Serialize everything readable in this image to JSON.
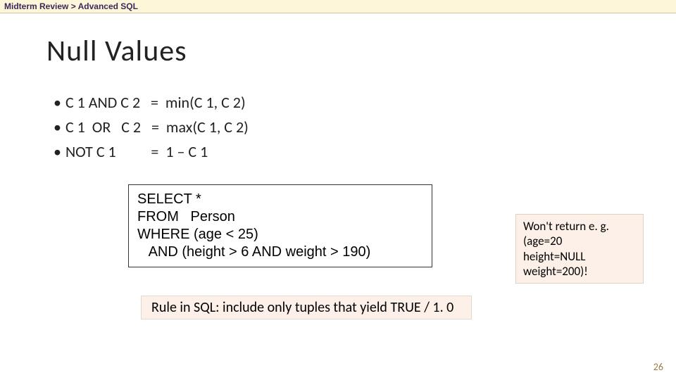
{
  "breadcrumb": {
    "segment1": "Midterm Review",
    "sep": "  >  ",
    "segment2": "Advanced SQL"
  },
  "title": "Null Values",
  "bullets": [
    {
      "text": "C 1 AND C 2   =  min(C 1, C 2)"
    },
    {
      "text": "C 1  OR   C 2   =  max(C 1, C 2)"
    },
    {
      "text": "NOT C 1          =  1 – C 1"
    }
  ],
  "code": "SELECT *\nFROM   Person\nWHERE (age < 25)\n   AND (height > 6 AND weight > 190)",
  "annotation": "Won't return e. g.\n(age=20\nheight=NULL\nweight=200)!",
  "rule": "Rule in SQL: include only tuples that yield TRUE / 1. 0",
  "page_number": "26",
  "colors": {
    "breadcrumb_bg": "#fdf6d9",
    "breadcrumb_border": "#d0c890",
    "breadcrumb_text": "#3a2a5a",
    "title_text": "#222222",
    "body_text": "#222222",
    "codebox_border": "#333333",
    "annotation_bg": "#fdf0e8",
    "annotation_border": "#e0d0c0",
    "rulebox_bg": "#fdf0e8",
    "rulebox_border": "#e6d9cc",
    "pagenum_text": "#9d7a4a",
    "background": "#ffffff"
  },
  "fonts": {
    "breadcrumb": {
      "family": "Comic Sans MS",
      "size_pt": 9,
      "weight": "bold"
    },
    "title": {
      "family": "Calibri Light",
      "size_pt": 32,
      "weight": "normal"
    },
    "body": {
      "family": "Calibri",
      "size_pt": 17,
      "weight": "normal"
    },
    "code": {
      "family": "Arial",
      "size_pt": 15,
      "weight": "normal"
    },
    "annotation": {
      "family": "Calibri",
      "size_pt": 13,
      "weight": "normal"
    },
    "pagenum": {
      "family": "Calibri",
      "size_pt": 11,
      "weight": "normal"
    }
  },
  "layout": {
    "slide_width": 960,
    "slide_height": 540
  }
}
